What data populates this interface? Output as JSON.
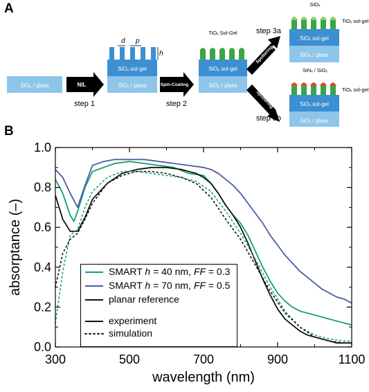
{
  "panel_a": {
    "letter": "A",
    "layer_glass": "SiOₓ / glass",
    "layer_solgel": "SiOₓ sol-gel",
    "steps": {
      "step1": "step 1",
      "step2": "step 2",
      "step3a": "step 3a",
      "step3b": "step 3b"
    },
    "arrows": {
      "nil": "NIL",
      "spin": "Spin-Coating",
      "sputter_a": "Sputtering",
      "sputter_b": "Sputtering"
    },
    "dims": {
      "d": "d",
      "p": "p",
      "h": "h"
    },
    "labels": {
      "tio_solgel_top": "TiOₓ Sol-Gel",
      "tio_solgel_a": "TiOₓ sol-gel",
      "tio_solgel_b": "TiOₓ sol-gel",
      "sio_top": "SiOₓ",
      "sin_sio": "SiNₓ / SiOₓ"
    },
    "colors": {
      "glass": "#8ec5ea",
      "solgel": "#3c8fd0",
      "tio2": "#3aa545",
      "sio_cap": "#8fd06a",
      "sin_cap": "#d84a3a"
    }
  },
  "panel_b": {
    "letter": "B",
    "chart_data": {
      "type": "line",
      "xlabel": "wavelength (nm)",
      "ylabel": "absorptance (–)",
      "xlim": [
        300,
        1100
      ],
      "ylim": [
        0.0,
        1.0
      ],
      "xticks": [
        "300",
        "500",
        "700",
        "900",
        "1100"
      ],
      "yticks": [
        "0.0",
        "0.2",
        "0.4",
        "0.6",
        "0.8",
        "1.0"
      ],
      "grid": false,
      "legend_position": "bottom-left",
      "legend": [
        {
          "label_html": "SMART <i>h</i> = 40 nm, <i>FF</i> = 0.3",
          "color": "#13a070"
        },
        {
          "label_html": "SMART <i>h</i> = 70 nm, <i>FF</i> = 0.5",
          "color": "#4a5aa8"
        },
        {
          "label_html": "planar reference",
          "color": "#111111"
        }
      ],
      "legend_styles": [
        {
          "label": "experiment",
          "style": "solid"
        },
        {
          "label": "simulation",
          "style": "dotted"
        }
      ],
      "series": [
        {
          "name": "SMART h = 40 nm, FF = 0.3",
          "style": "experiment",
          "color": "#13a070",
          "x": [
            300,
            320,
            340,
            350,
            360,
            380,
            400,
            430,
            460,
            500,
            540,
            580,
            620,
            660,
            700,
            720,
            740,
            760,
            780,
            800,
            820,
            840,
            860,
            880,
            900,
            920,
            940,
            960,
            980,
            1000,
            1020,
            1040,
            1060,
            1080,
            1100
          ],
          "y": [
            0.84,
            0.77,
            0.66,
            0.63,
            0.68,
            0.8,
            0.88,
            0.9,
            0.92,
            0.93,
            0.92,
            0.91,
            0.9,
            0.87,
            0.86,
            0.82,
            0.77,
            0.71,
            0.66,
            0.62,
            0.56,
            0.48,
            0.4,
            0.33,
            0.27,
            0.23,
            0.2,
            0.18,
            0.17,
            0.16,
            0.15,
            0.14,
            0.13,
            0.12,
            0.11
          ]
        },
        {
          "name": "SMART h = 70 nm, FF = 0.5",
          "style": "experiment",
          "color": "#4a5aa8",
          "x": [
            300,
            320,
            340,
            360,
            380,
            400,
            430,
            460,
            500,
            540,
            580,
            620,
            660,
            700,
            720,
            740,
            760,
            780,
            800,
            820,
            840,
            860,
            880,
            900,
            920,
            940,
            960,
            980,
            1000,
            1020,
            1040,
            1060,
            1080,
            1100
          ],
          "y": [
            0.89,
            0.85,
            0.77,
            0.7,
            0.81,
            0.91,
            0.93,
            0.94,
            0.94,
            0.94,
            0.93,
            0.92,
            0.91,
            0.9,
            0.89,
            0.87,
            0.84,
            0.81,
            0.77,
            0.72,
            0.67,
            0.62,
            0.56,
            0.51,
            0.46,
            0.42,
            0.38,
            0.35,
            0.32,
            0.29,
            0.27,
            0.25,
            0.24,
            0.22
          ]
        },
        {
          "name": "planar reference",
          "style": "experiment",
          "color": "#111111",
          "x": [
            300,
            320,
            340,
            360,
            380,
            400,
            440,
            480,
            520,
            560,
            600,
            640,
            680,
            700,
            720,
            740,
            760,
            780,
            800,
            820,
            840,
            860,
            880,
            900,
            920,
            940,
            960,
            980,
            1000,
            1020,
            1040,
            1060,
            1080,
            1100
          ],
          "y": [
            0.76,
            0.64,
            0.58,
            0.58,
            0.65,
            0.74,
            0.82,
            0.87,
            0.89,
            0.9,
            0.9,
            0.89,
            0.87,
            0.85,
            0.82,
            0.77,
            0.71,
            0.66,
            0.6,
            0.52,
            0.43,
            0.34,
            0.26,
            0.19,
            0.14,
            0.11,
            0.08,
            0.06,
            0.05,
            0.04,
            0.03,
            0.02,
            0.02,
            0.02
          ]
        },
        {
          "name": "SMART h = 40 nm, FF = 0.3",
          "style": "simulation",
          "color": "#13a070",
          "x": [
            300,
            320,
            340,
            360,
            380,
            400,
            440,
            480,
            520,
            560,
            600,
            640,
            680,
            720,
            760,
            800,
            840,
            880,
            920,
            960,
            1000,
            1040,
            1080,
            1100
          ],
          "y": [
            0.12,
            0.38,
            0.56,
            0.59,
            0.7,
            0.78,
            0.85,
            0.88,
            0.88,
            0.87,
            0.86,
            0.85,
            0.83,
            0.78,
            0.68,
            0.57,
            0.44,
            0.3,
            0.18,
            0.1,
            0.06,
            0.04,
            0.03,
            0.03
          ]
        },
        {
          "name": "planar reference",
          "style": "simulation",
          "color": "#111111",
          "x": [
            300,
            320,
            340,
            360,
            380,
            400,
            440,
            480,
            520,
            560,
            600,
            640,
            680,
            720,
            760,
            800,
            840,
            880,
            920,
            960,
            1000,
            1040,
            1080,
            1100
          ],
          "y": [
            0.3,
            0.47,
            0.54,
            0.57,
            0.64,
            0.72,
            0.82,
            0.86,
            0.88,
            0.88,
            0.87,
            0.85,
            0.82,
            0.75,
            0.64,
            0.54,
            0.41,
            0.28,
            0.17,
            0.1,
            0.05,
            0.03,
            0.02,
            0.02
          ]
        }
      ]
    }
  }
}
